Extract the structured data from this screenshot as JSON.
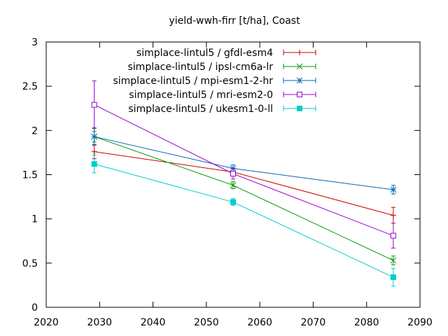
{
  "chart_data": {
    "type": "line",
    "title": "yield-wwh-firr [t/ha], Coast",
    "xlabel": "",
    "ylabel": "",
    "xlim": [
      2020,
      2090
    ],
    "ylim": [
      0,
      3
    ],
    "x_ticks": [
      "2020",
      "2030",
      "2040",
      "2050",
      "2060",
      "2070",
      "2080",
      "2090"
    ],
    "y_ticks": [
      "0",
      "0.5",
      "1",
      "1.5",
      "2",
      "2.5",
      "3"
    ],
    "x": [
      2029,
      2055,
      2085
    ],
    "legend_position": "top-right",
    "grid": false,
    "series": [
      {
        "name": "simplace-lintul5 / gfdl-esm4",
        "color": "#cc0000",
        "marker": "plus",
        "values": [
          1.76,
          1.53,
          1.04
        ],
        "err": [
          0.08,
          0.04,
          0.09
        ]
      },
      {
        "name": "simplace-lintul5 / ipsl-cm6a-lr",
        "color": "#009900",
        "marker": "cross",
        "values": [
          1.93,
          1.38,
          0.53
        ],
        "err": [
          0.06,
          0.04,
          0.05
        ]
      },
      {
        "name": "simplace-lintul5 / mpi-esm1-2-hr",
        "color": "#0066bb",
        "marker": "star",
        "values": [
          1.93,
          1.57,
          1.33
        ],
        "err": [
          0.1,
          0.04,
          0.05
        ]
      },
      {
        "name": "simplace-lintul5 / mri-esm2-0",
        "color": "#9900cc",
        "marker": "open-square",
        "values": [
          2.29,
          1.51,
          0.81
        ],
        "err": [
          0.27,
          0.06,
          0.14
        ]
      },
      {
        "name": "simplace-lintul5 / ukesm1-0-ll",
        "color": "#00cccc",
        "marker": "filled-square",
        "values": [
          1.62,
          1.19,
          0.34
        ],
        "err": [
          0.1,
          0.04,
          0.1
        ]
      }
    ]
  }
}
